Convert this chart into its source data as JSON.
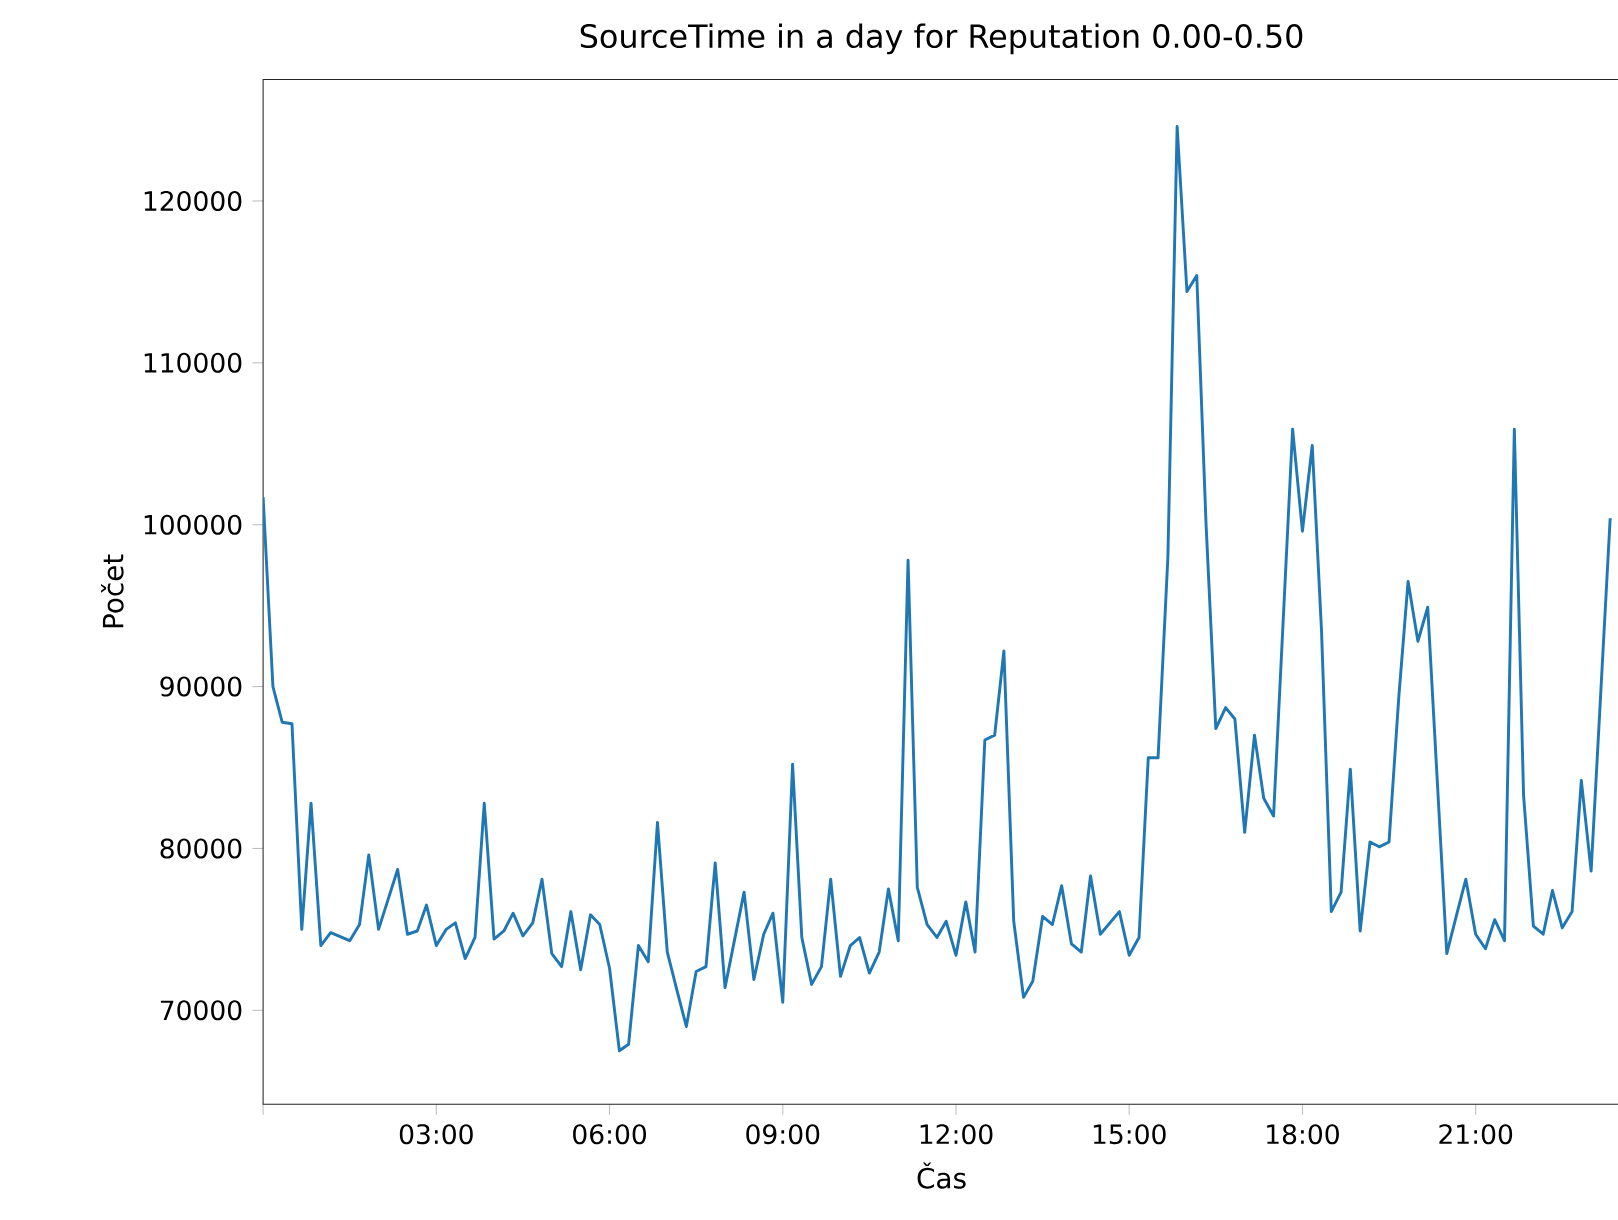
{
  "chart_data": {
    "type": "line",
    "title": "SourceTime in a day for Reputation 0.00-0.50",
    "xlabel": "Čas",
    "ylabel": "Počet",
    "x": [
      0,
      0.17,
      0.33,
      0.5,
      0.67,
      0.83,
      1,
      1.17,
      1.5,
      1.67,
      1.83,
      2,
      2.33,
      2.5,
      2.67,
      2.83,
      3,
      3.17,
      3.33,
      3.5,
      3.67,
      3.83,
      4,
      4.17,
      4.33,
      4.5,
      4.67,
      4.83,
      5,
      5.17,
      5.33,
      5.5,
      5.67,
      5.83,
      6,
      6.17,
      6.33,
      6.5,
      6.67,
      6.83,
      7,
      7.17,
      7.33,
      7.5,
      7.67,
      7.83,
      8,
      8.33,
      8.5,
      8.67,
      8.83,
      9,
      9.17,
      9.33,
      9.5,
      9.67,
      9.83,
      10,
      10.17,
      10.33,
      10.5,
      10.67,
      10.83,
      11,
      11.17,
      11.33,
      11.5,
      11.67,
      11.83,
      12,
      12.17,
      12.33,
      12.5,
      12.67,
      12.83,
      13,
      13.17,
      13.33,
      13.5,
      13.67,
      13.83,
      14,
      14.17,
      14.33,
      14.5,
      14.83,
      15,
      15.17,
      15.33,
      15.5,
      15.67,
      15.83,
      16,
      16.17,
      16.33,
      16.5,
      16.67,
      16.83,
      17,
      17.17,
      17.33,
      17.5,
      17.83,
      18,
      18.17,
      18.33,
      18.5,
      18.67,
      18.83,
      19,
      19.17,
      19.33,
      19.5,
      19.67,
      19.83,
      20,
      20.17,
      20.5,
      20.67,
      20.83,
      21,
      21.17,
      21.33,
      21.5,
      21.67,
      21.83,
      22,
      22.17,
      22.33,
      22.5,
      22.67,
      22.83,
      23,
      23.33
    ],
    "series": [
      {
        "color": "#1f77b4",
        "values": [
          101700,
          90000,
          87800,
          87700,
          75000,
          82800,
          74000,
          74800,
          74300,
          75300,
          79600,
          75000,
          78700,
          74700,
          74900,
          76500,
          74000,
          75000,
          75400,
          73200,
          74500,
          82800,
          74400,
          74900,
          76000,
          74600,
          75400,
          78100,
          73500,
          72700,
          76100,
          72500,
          75900,
          75300,
          72600,
          67500,
          67900,
          74000,
          73000,
          81600,
          73600,
          71200,
          69000,
          72400,
          72700,
          79100,
          71400,
          77300,
          71900,
          74700,
          76000,
          70500,
          85200,
          74500,
          71600,
          72700,
          78100,
          72100,
          74000,
          74500,
          72300,
          73600,
          77500,
          74300,
          97800,
          77600,
          75300,
          74500,
          75500,
          73400,
          76700,
          73600,
          86700,
          87000,
          92200,
          75500,
          70800,
          71800,
          75800,
          75300,
          77700,
          74100,
          73600,
          78300,
          74700,
          76100,
          73400,
          74500,
          85600,
          85600,
          98000,
          124600,
          114400,
          115400,
          100100,
          87400,
          88700,
          88000,
          81000,
          87000,
          83100,
          82000,
          105900,
          99600,
          104900,
          93500,
          76100,
          77300,
          84900,
          74900,
          80400,
          80100,
          80400,
          89400,
          96500,
          92800,
          94900,
          73500,
          75900,
          78100,
          74700,
          73800,
          75600,
          74300,
          105900,
          83300,
          75200,
          74700,
          77400,
          75100,
          76100,
          84200,
          78600,
          100400
        ]
      }
    ],
    "xlim": [
      0,
      23.5
    ],
    "ylim": [
      64200,
      127500
    ],
    "xticks": [
      {
        "value": 0,
        "label": null
      },
      {
        "value": 3,
        "label": "03:00"
      },
      {
        "value": 6,
        "label": "06:00"
      },
      {
        "value": 9,
        "label": "09:00"
      },
      {
        "value": 12,
        "label": "12:00"
      },
      {
        "value": 15,
        "label": "15:00"
      },
      {
        "value": 18,
        "label": "18:00"
      },
      {
        "value": 21,
        "label": "21:00"
      }
    ],
    "yticks": [
      70000,
      80000,
      90000,
      100000,
      110000,
      120000
    ]
  }
}
